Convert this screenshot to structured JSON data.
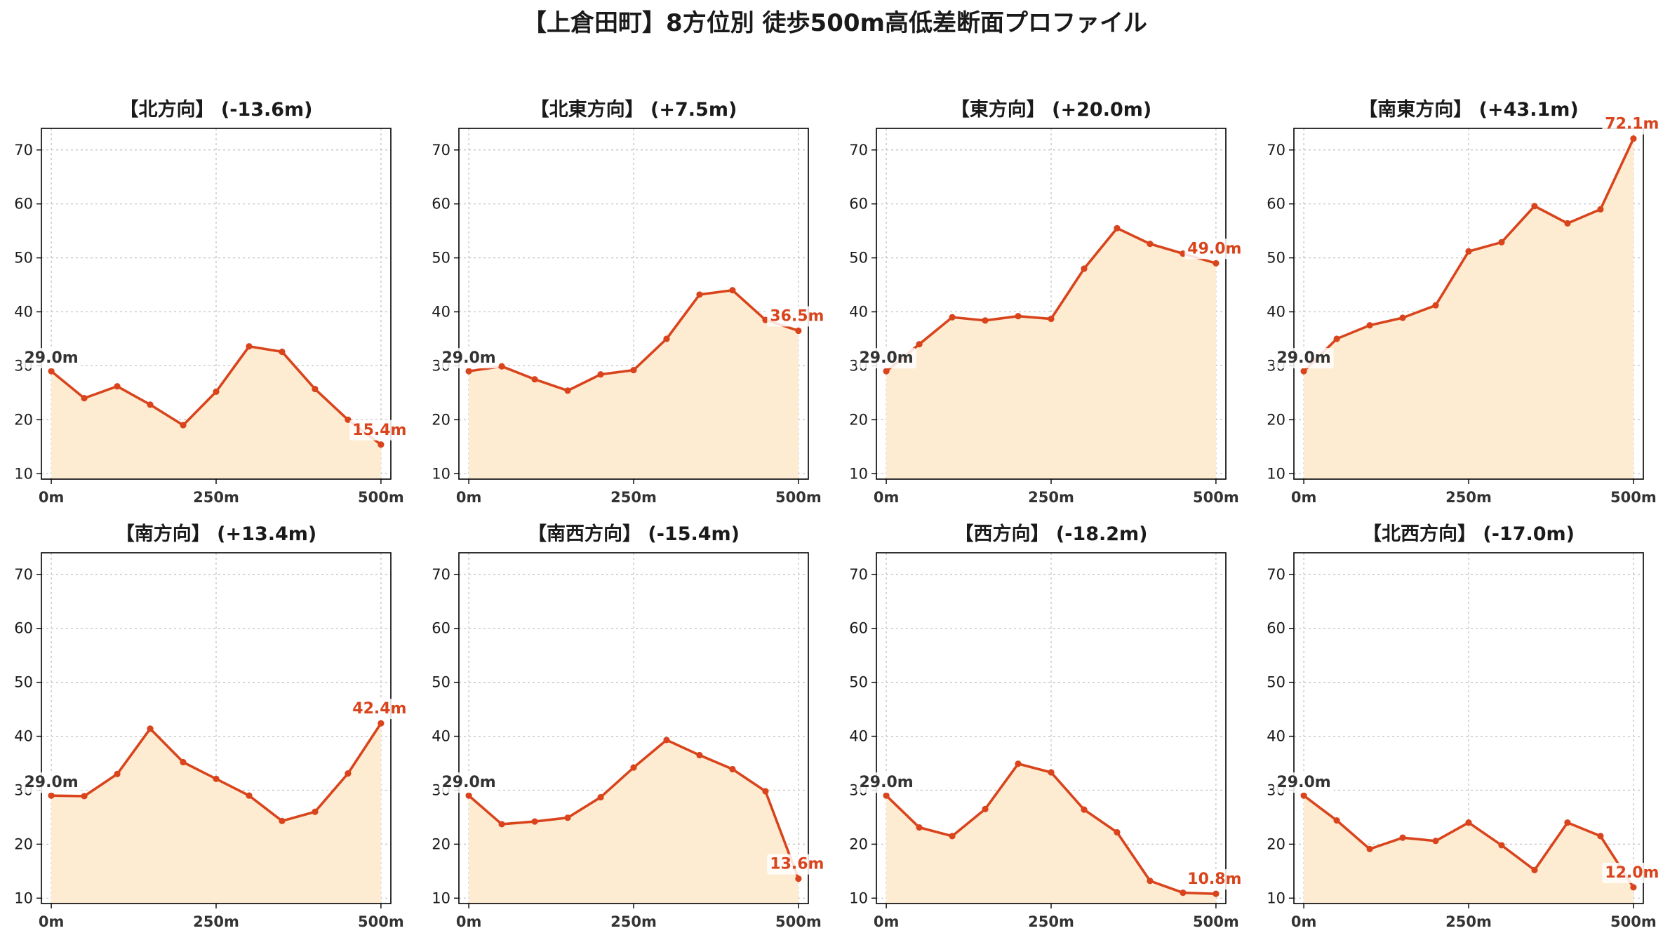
{
  "title": "【上倉田町】8方位別 徒歩500m高低差断面プロファイル",
  "colors": {
    "line": "#d9441c",
    "fill": "#feecd2",
    "start_label": "#333333"
  },
  "chart_data": [
    {
      "type": "area",
      "title": "【北方向】 (-13.6m)",
      "x": [
        0,
        50,
        100,
        150,
        200,
        250,
        300,
        350,
        400,
        450,
        500
      ],
      "y": [
        29.0,
        24.0,
        26.2,
        22.8,
        19.0,
        25.2,
        33.6,
        32.6,
        25.7,
        20.0,
        15.4
      ],
      "start_label": "29.0m",
      "end_label": "15.4m",
      "xticks": [
        "0m",
        "250m",
        "500m"
      ],
      "yticks": [
        10,
        20,
        30,
        40,
        50,
        60,
        70
      ],
      "xlim": [
        -15,
        515
      ],
      "ylim": [
        9,
        74
      ],
      "grid": true
    },
    {
      "type": "area",
      "title": "【北東方向】 (+7.5m)",
      "x": [
        0,
        50,
        100,
        150,
        200,
        250,
        300,
        350,
        400,
        450,
        500
      ],
      "y": [
        29.0,
        29.9,
        27.5,
        25.4,
        28.4,
        29.2,
        35.0,
        43.2,
        44.0,
        38.5,
        36.5
      ],
      "start_label": "29.0m",
      "end_label": "36.5m",
      "xticks": [
        "0m",
        "250m",
        "500m"
      ],
      "yticks": [
        10,
        20,
        30,
        40,
        50,
        60,
        70
      ],
      "xlim": [
        -15,
        515
      ],
      "ylim": [
        9,
        74
      ],
      "grid": true
    },
    {
      "type": "area",
      "title": "【東方向】 (+20.0m)",
      "x": [
        0,
        50,
        100,
        150,
        200,
        250,
        300,
        350,
        400,
        450,
        500
      ],
      "y": [
        29.0,
        34.0,
        39.0,
        38.4,
        39.2,
        38.7,
        48.0,
        55.5,
        52.6,
        50.8,
        49.0
      ],
      "start_label": "29.0m",
      "end_label": "49.0m",
      "xticks": [
        "0m",
        "250m",
        "500m"
      ],
      "yticks": [
        10,
        20,
        30,
        40,
        50,
        60,
        70
      ],
      "xlim": [
        -15,
        515
      ],
      "ylim": [
        9,
        74
      ],
      "grid": true
    },
    {
      "type": "area",
      "title": "【南東方向】 (+43.1m)",
      "x": [
        0,
        50,
        100,
        150,
        200,
        250,
        300,
        350,
        400,
        450,
        500
      ],
      "y": [
        29.0,
        35.0,
        37.5,
        38.9,
        41.2,
        51.2,
        52.9,
        59.6,
        56.4,
        59.0,
        72.1
      ],
      "start_label": "29.0m",
      "end_label": "72.1m",
      "xticks": [
        "0m",
        "250m",
        "500m"
      ],
      "yticks": [
        10,
        20,
        30,
        40,
        50,
        60,
        70
      ],
      "xlim": [
        -15,
        515
      ],
      "ylim": [
        9,
        74
      ],
      "grid": true
    },
    {
      "type": "area",
      "title": "【南方向】 (+13.4m)",
      "x": [
        0,
        50,
        100,
        150,
        200,
        250,
        300,
        350,
        400,
        450,
        500
      ],
      "y": [
        29.0,
        28.9,
        33.0,
        41.4,
        35.2,
        32.1,
        29.0,
        24.3,
        26.0,
        33.1,
        42.4
      ],
      "start_label": "29.0m",
      "end_label": "42.4m",
      "xticks": [
        "0m",
        "250m",
        "500m"
      ],
      "yticks": [
        10,
        20,
        30,
        40,
        50,
        60,
        70
      ],
      "xlim": [
        -15,
        515
      ],
      "ylim": [
        9,
        74
      ],
      "grid": true
    },
    {
      "type": "area",
      "title": "【南西方向】 (-15.4m)",
      "x": [
        0,
        50,
        100,
        150,
        200,
        250,
        300,
        350,
        400,
        450,
        500
      ],
      "y": [
        29.0,
        23.7,
        24.2,
        24.9,
        28.7,
        34.2,
        39.3,
        36.5,
        33.9,
        29.8,
        13.6
      ],
      "start_label": "29.0m",
      "end_label": "13.6m",
      "xticks": [
        "0m",
        "250m",
        "500m"
      ],
      "yticks": [
        10,
        20,
        30,
        40,
        50,
        60,
        70
      ],
      "xlim": [
        -15,
        515
      ],
      "ylim": [
        9,
        74
      ],
      "grid": true
    },
    {
      "type": "area",
      "title": "【西方向】 (-18.2m)",
      "x": [
        0,
        50,
        100,
        150,
        200,
        250,
        300,
        350,
        400,
        450,
        500
      ],
      "y": [
        29.0,
        23.1,
        21.5,
        26.5,
        34.9,
        33.3,
        26.4,
        22.2,
        13.2,
        11.0,
        10.8
      ],
      "start_label": "29.0m",
      "end_label": "10.8m",
      "xticks": [
        "0m",
        "250m",
        "500m"
      ],
      "yticks": [
        10,
        20,
        30,
        40,
        50,
        60,
        70
      ],
      "xlim": [
        -15,
        515
      ],
      "ylim": [
        9,
        74
      ],
      "grid": true
    },
    {
      "type": "area",
      "title": "【北西方向】 (-17.0m)",
      "x": [
        0,
        50,
        100,
        150,
        200,
        250,
        300,
        350,
        400,
        450,
        500
      ],
      "y": [
        29.0,
        24.4,
        19.1,
        21.2,
        20.6,
        24.0,
        19.8,
        15.2,
        24.0,
        21.5,
        12.0
      ],
      "start_label": "29.0m",
      "end_label": "12.0m",
      "xticks": [
        "0m",
        "250m",
        "500m"
      ],
      "yticks": [
        10,
        20,
        30,
        40,
        50,
        60,
        70
      ],
      "xlim": [
        -15,
        515
      ],
      "ylim": [
        9,
        74
      ],
      "grid": true
    }
  ]
}
